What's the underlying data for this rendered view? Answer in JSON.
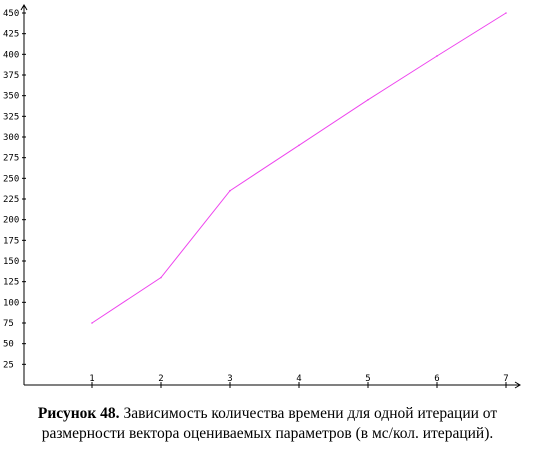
{
  "figure": {
    "caption_label": "Рисунок 48.",
    "caption_text_line1": " Зависимость количества времени для одной итерации от",
    "caption_text_line2": "размерности вектора оцениваемых параметров (в мс/кол. итераций)."
  },
  "chart_data": {
    "type": "line",
    "title": "",
    "xlabel": "",
    "ylabel": "",
    "x": [
      1,
      2,
      3,
      4,
      5,
      6,
      7
    ],
    "series": [
      {
        "values": [
          75,
          130,
          235,
          290,
          345,
          398,
          450
        ],
        "color": "#ee44ee"
      }
    ],
    "xticks": [
      1,
      2,
      3,
      4,
      5,
      6,
      7
    ],
    "yticks": [
      25,
      50,
      75,
      100,
      125,
      150,
      175,
      200,
      225,
      250,
      275,
      300,
      325,
      350,
      375,
      400,
      425,
      450
    ],
    "xlim": [
      0,
      7
    ],
    "ylim": [
      0,
      450
    ],
    "grid": false,
    "axis_color": "#000000"
  }
}
